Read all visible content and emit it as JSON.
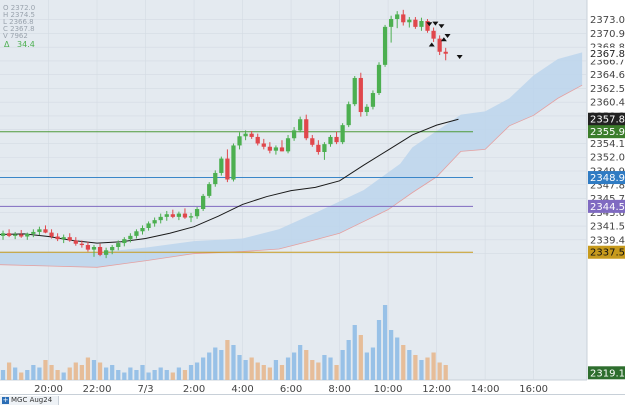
{
  "ohlc_panel": {
    "lines": [
      "O 2372.0",
      "H 2374.5",
      "L 2366.8",
      "C 2367.8",
      "V 7962"
    ],
    "delta_label": "Δ",
    "delta_value": "34.4"
  },
  "footer": {
    "symbol": "MGC Aug24"
  },
  "colors": {
    "up": "#4caf50",
    "down": "#e0474c",
    "background": "#e4eaf0",
    "cloud": "#bcd5ec",
    "ma": "#1a1a1a",
    "vol_up": "#8fbde6",
    "vol_down": "#e6b88f",
    "hline_green": "#4e9a3a",
    "hline_blue": "#3a86c8",
    "hline_purple": "#7f6ac1",
    "hline_gold": "#c79a1c"
  },
  "chart_data": {
    "type": "candlestick",
    "y_range": [
      2318.0,
      2376.0
    ],
    "x_labels": [
      "20:00",
      "22:00",
      "7/3",
      "2:00",
      "4:00",
      "6:00",
      "8:00",
      "10:00",
      "12:00",
      "14:00",
      "16:00"
    ],
    "x_label_hours": [
      20,
      22,
      24,
      26,
      28,
      30,
      32,
      34,
      36,
      38,
      40
    ],
    "x_range_hours": [
      18.0,
      42.2
    ],
    "price_ticks": [
      "2373.0",
      "2370.9",
      "2368.8",
      "2366.7",
      "2364.6",
      "2362.5",
      "2360.4",
      "2358.3",
      "2356.2",
      "2354.1",
      "2352.0",
      "2349.9",
      "2347.8",
      "2345.7",
      "2343.6",
      "2341.5",
      "2339.4",
      "2337.3"
    ],
    "price_tags": [
      {
        "label": "2367.8",
        "value": 2367.8,
        "style": "plain"
      },
      {
        "label": "2357.8",
        "value": 2357.8,
        "style": "black"
      },
      {
        "label": "2355.9",
        "value": 2355.9,
        "style": "green"
      },
      {
        "label": "2348.9",
        "value": 2348.9,
        "style": "blue"
      },
      {
        "label": "2344.5",
        "value": 2344.5,
        "style": "purple"
      },
      {
        "label": "2337.5",
        "value": 2337.5,
        "style": "gold"
      },
      {
        "label": "2319.1",
        "value": 2319.1,
        "style": "darkgreen"
      }
    ],
    "horizontal_lines": [
      {
        "value": 2355.9,
        "color": "hline_green"
      },
      {
        "value": 2348.9,
        "color": "hline_blue"
      },
      {
        "value": 2344.5,
        "color": "hline_purple"
      },
      {
        "value": 2337.5,
        "color": "hline_gold"
      }
    ],
    "candles_start_hour": 18.0,
    "candle_interval_hours": 0.25,
    "candles": [
      [
        2340.0,
        2340.8,
        2339.4,
        2340.4
      ],
      [
        2340.4,
        2341.0,
        2339.8,
        2340.0
      ],
      [
        2340.0,
        2340.6,
        2339.5,
        2340.2
      ],
      [
        2340.2,
        2340.9,
        2339.7,
        2339.9
      ],
      [
        2339.9,
        2340.5,
        2339.4,
        2340.3
      ],
      [
        2340.3,
        2341.0,
        2339.8,
        2340.6
      ],
      [
        2340.6,
        2341.4,
        2340.1,
        2341.0
      ],
      [
        2341.0,
        2341.6,
        2340.4,
        2340.5
      ],
      [
        2340.5,
        2341.0,
        2339.6,
        2339.9
      ],
      [
        2339.9,
        2340.4,
        2339.2,
        2339.5
      ],
      [
        2339.5,
        2340.2,
        2338.9,
        2339.8
      ],
      [
        2339.8,
        2340.4,
        2339.1,
        2339.3
      ],
      [
        2339.3,
        2339.8,
        2338.5,
        2338.8
      ],
      [
        2338.8,
        2339.3,
        2338.2,
        2338.6
      ],
      [
        2338.6,
        2339.1,
        2337.6,
        2337.9
      ],
      [
        2337.9,
        2338.6,
        2336.8,
        2338.3
      ],
      [
        2338.3,
        2338.8,
        2336.9,
        2337.1
      ],
      [
        2337.1,
        2338.2,
        2336.6,
        2337.8
      ],
      [
        2337.8,
        2338.6,
        2337.2,
        2338.3
      ],
      [
        2338.3,
        2339.3,
        2337.8,
        2338.9
      ],
      [
        2338.9,
        2339.8,
        2338.4,
        2339.5
      ],
      [
        2339.5,
        2340.4,
        2339.0,
        2340.0
      ],
      [
        2340.0,
        2341.0,
        2339.6,
        2340.7
      ],
      [
        2340.7,
        2341.6,
        2340.2,
        2341.2
      ],
      [
        2341.2,
        2342.2,
        2340.8,
        2341.9
      ],
      [
        2341.9,
        2342.8,
        2341.4,
        2342.4
      ],
      [
        2342.4,
        2343.4,
        2341.9,
        2342.9
      ],
      [
        2342.9,
        2343.8,
        2342.3,
        2343.3
      ],
      [
        2343.3,
        2344.0,
        2342.7,
        2342.9
      ],
      [
        2342.9,
        2343.7,
        2342.4,
        2343.4
      ],
      [
        2343.4,
        2344.2,
        2342.6,
        2342.8
      ],
      [
        2342.8,
        2343.5,
        2342.1,
        2343.0
      ],
      [
        2343.0,
        2344.4,
        2342.6,
        2344.1
      ],
      [
        2344.1,
        2346.4,
        2343.8,
        2346.1
      ],
      [
        2346.1,
        2348.2,
        2345.8,
        2347.9
      ],
      [
        2347.9,
        2350.0,
        2347.5,
        2349.6
      ],
      [
        2349.6,
        2352.1,
        2349.2,
        2351.8
      ],
      [
        2351.8,
        2353.2,
        2348.2,
        2348.6
      ],
      [
        2348.6,
        2354.1,
        2348.3,
        2353.8
      ],
      [
        2353.8,
        2355.8,
        2353.2,
        2355.2
      ],
      [
        2355.2,
        2356.1,
        2354.6,
        2355.6
      ],
      [
        2355.6,
        2356.0,
        2354.8,
        2355.1
      ],
      [
        2355.1,
        2355.6,
        2353.8,
        2354.1
      ],
      [
        2354.1,
        2354.8,
        2353.2,
        2353.6
      ],
      [
        2353.6,
        2354.3,
        2352.6,
        2353.0
      ],
      [
        2353.0,
        2353.8,
        2352.4,
        2353.5
      ],
      [
        2353.5,
        2354.6,
        2352.9,
        2352.9
      ],
      [
        2352.9,
        2355.4,
        2352.6,
        2354.9
      ],
      [
        2354.9,
        2356.6,
        2354.5,
        2356.1
      ],
      [
        2356.1,
        2358.2,
        2355.8,
        2357.8
      ],
      [
        2357.8,
        2358.5,
        2354.6,
        2354.9
      ],
      [
        2354.9,
        2355.4,
        2353.6,
        2353.9
      ],
      [
        2353.9,
        2354.6,
        2352.4,
        2352.8
      ],
      [
        2352.8,
        2354.3,
        2351.6,
        2354.0
      ],
      [
        2354.0,
        2355.4,
        2353.6,
        2355.1
      ],
      [
        2355.1,
        2355.9,
        2354.0,
        2354.3
      ],
      [
        2354.3,
        2357.2,
        2354.0,
        2356.9
      ],
      [
        2356.9,
        2360.5,
        2356.6,
        2360.1
      ],
      [
        2360.1,
        2364.4,
        2359.8,
        2364.1
      ],
      [
        2364.1,
        2364.9,
        2358.2,
        2358.9
      ],
      [
        2358.9,
        2360.1,
        2358.3,
        2359.7
      ],
      [
        2359.7,
        2362.2,
        2359.3,
        2361.8
      ],
      [
        2361.8,
        2366.5,
        2361.5,
        2366.1
      ],
      [
        2366.1,
        2372.2,
        2365.8,
        2371.9
      ],
      [
        2371.9,
        2373.6,
        2369.5,
        2373.1
      ],
      [
        2373.1,
        2374.3,
        2371.7,
        2373.8
      ],
      [
        2373.8,
        2374.5,
        2372.1,
        2372.6
      ],
      [
        2372.6,
        2373.4,
        2371.8,
        2373.0
      ],
      [
        2373.0,
        2373.4,
        2371.6,
        2371.9
      ],
      [
        2371.9,
        2373.3,
        2371.3,
        2372.8
      ],
      [
        2372.8,
        2373.1,
        2371.0,
        2371.3
      ],
      [
        2371.3,
        2371.8,
        2369.6,
        2370.1
      ],
      [
        2370.1,
        2370.6,
        2367.6,
        2368.1
      ],
      [
        2368.1,
        2368.7,
        2366.8,
        2367.8
      ]
    ],
    "volume": [
      4,
      7,
      5,
      3,
      4,
      6,
      5,
      8,
      6,
      4,
      3,
      5,
      7,
      6,
      9,
      8,
      7,
      5,
      6,
      4,
      3,
      5,
      4,
      6,
      3,
      4,
      5,
      4,
      3,
      5,
      4,
      6,
      7,
      9,
      11,
      13,
      12,
      16,
      14,
      10,
      8,
      9,
      7,
      6,
      5,
      8,
      6,
      9,
      11,
      14,
      12,
      8,
      7,
      10,
      9,
      6,
      12,
      16,
      22,
      18,
      11,
      13,
      24,
      30,
      20,
      17,
      14,
      12,
      10,
      8,
      9,
      11,
      7,
      6
    ],
    "volume_scale_max": 32,
    "moving_average": [
      [
        18.0,
        2340.2
      ],
      [
        19.0,
        2340.3
      ],
      [
        20.0,
        2339.9
      ],
      [
        21.0,
        2339.3
      ],
      [
        22.0,
        2338.9
      ],
      [
        23.0,
        2339.1
      ],
      [
        24.0,
        2339.6
      ],
      [
        25.0,
        2340.4
      ],
      [
        26.0,
        2341.4
      ],
      [
        27.0,
        2343.0
      ],
      [
        28.0,
        2344.8
      ],
      [
        29.0,
        2346.0
      ],
      [
        30.0,
        2346.9
      ],
      [
        31.0,
        2347.4
      ],
      [
        32.0,
        2348.4
      ],
      [
        33.0,
        2350.8
      ],
      [
        34.0,
        2353.1
      ],
      [
        35.0,
        2355.4
      ],
      [
        36.0,
        2356.9
      ],
      [
        36.9,
        2357.8
      ]
    ],
    "cloud_top": [
      [
        18.0,
        2337.6
      ],
      [
        20.0,
        2337.6
      ],
      [
        22.0,
        2337.5
      ],
      [
        24.0,
        2338.2
      ],
      [
        26.0,
        2339.2
      ],
      [
        28.0,
        2339.6
      ],
      [
        29.5,
        2341.0
      ],
      [
        31.0,
        2343.5
      ],
      [
        33.0,
        2347.0
      ],
      [
        34.5,
        2351.0
      ],
      [
        35.0,
        2353.5
      ],
      [
        36.0,
        2356.0
      ],
      [
        37.0,
        2358.5
      ],
      [
        38.0,
        2359.0
      ],
      [
        39.0,
        2361.0
      ],
      [
        40.0,
        2364.5
      ],
      [
        41.0,
        2367.0
      ],
      [
        42.0,
        2368.0
      ]
    ],
    "cloud_bottom": [
      [
        18.0,
        2335.6
      ],
      [
        20.0,
        2335.4
      ],
      [
        22.0,
        2335.2
      ],
      [
        24.0,
        2336.2
      ],
      [
        26.0,
        2337.3
      ],
      [
        28.0,
        2337.6
      ],
      [
        29.5,
        2338.0
      ],
      [
        31.0,
        2339.4
      ],
      [
        32.0,
        2340.4
      ],
      [
        33.0,
        2342.2
      ],
      [
        34.0,
        2344.0
      ],
      [
        35.0,
        2346.6
      ],
      [
        36.0,
        2349.0
      ],
      [
        37.0,
        2352.9
      ],
      [
        38.0,
        2353.2
      ],
      [
        39.0,
        2356.8
      ],
      [
        40.0,
        2358.4
      ],
      [
        41.0,
        2361.0
      ],
      [
        42.0,
        2363.0
      ]
    ],
    "signals": [
      {
        "hour": 35.7,
        "price": 2372.3,
        "dir": "down"
      },
      {
        "hour": 35.95,
        "price": 2372.4,
        "dir": "down"
      },
      {
        "hour": 36.2,
        "price": 2372.0,
        "dir": "down"
      },
      {
        "hour": 36.45,
        "price": 2370.5,
        "dir": "down"
      },
      {
        "hour": 36.95,
        "price": 2367.3,
        "dir": "down"
      },
      {
        "hour": 35.8,
        "price": 2369.2,
        "dir": "up"
      },
      {
        "hour": 36.3,
        "price": 2370.0,
        "dir": "up"
      }
    ]
  }
}
